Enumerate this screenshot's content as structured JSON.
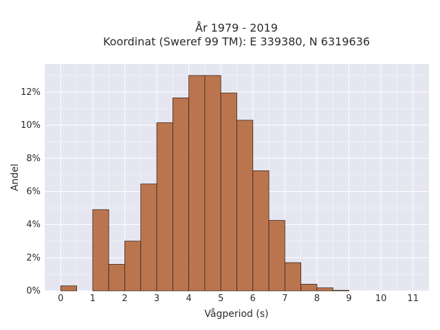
{
  "chart_data": {
    "type": "bar",
    "title_lines": [
      "År 1979 - 2019",
      "Koordinat (Sweref 99 TM): E 339380, N 6319636"
    ],
    "xlabel": "Vågperiod (s)",
    "ylabel": "Andel",
    "xlim": [
      -0.5,
      11.5
    ],
    "ylim": [
      0,
      13.7
    ],
    "x_ticks": [
      0,
      1,
      2,
      3,
      4,
      5,
      6,
      7,
      8,
      9,
      10,
      11
    ],
    "y_ticks": [
      0,
      2,
      4,
      6,
      8,
      10,
      12
    ],
    "y_tick_labels": [
      "0%",
      "2%",
      "4%",
      "6%",
      "8%",
      "10%",
      "12%"
    ],
    "bin_width": 0.5,
    "bins": [
      {
        "start": 0.0,
        "value": 0.3
      },
      {
        "start": 0.5,
        "value": 0.0
      },
      {
        "start": 1.0,
        "value": 4.9
      },
      {
        "start": 1.5,
        "value": 1.6
      },
      {
        "start": 2.0,
        "value": 3.0
      },
      {
        "start": 2.5,
        "value": 6.45
      },
      {
        "start": 3.0,
        "value": 10.15
      },
      {
        "start": 3.5,
        "value": 11.65
      },
      {
        "start": 4.0,
        "value": 13.0
      },
      {
        "start": 4.5,
        "value": 13.0
      },
      {
        "start": 5.0,
        "value": 11.95
      },
      {
        "start": 5.5,
        "value": 10.3
      },
      {
        "start": 6.0,
        "value": 7.25
      },
      {
        "start": 6.5,
        "value": 4.25
      },
      {
        "start": 7.0,
        "value": 1.7
      },
      {
        "start": 7.5,
        "value": 0.4
      },
      {
        "start": 8.0,
        "value": 0.18
      },
      {
        "start": 8.5,
        "value": 0.03
      }
    ],
    "grid": true,
    "colors": {
      "bar_fill": "#b5683d",
      "bar_stroke": "#3a2418",
      "plot_background": "#e5e6f0",
      "grid": "#ffffff"
    }
  }
}
